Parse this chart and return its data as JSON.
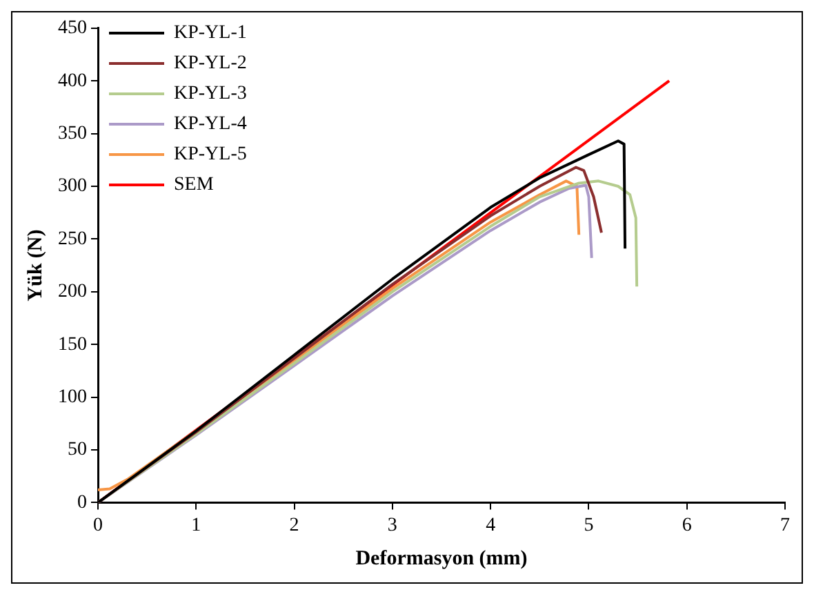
{
  "chart_data": {
    "type": "line",
    "xlabel": "Deformasyon (mm)",
    "ylabel": "Yük (N)",
    "xlim": [
      0,
      7
    ],
    "xticks": [
      0,
      1,
      2,
      3,
      4,
      5,
      6,
      7
    ],
    "ylim": [
      0,
      450
    ],
    "yticks": [
      0,
      50,
      100,
      150,
      200,
      250,
      300,
      350,
      400,
      450
    ],
    "grid": false,
    "legend": "top left",
    "marker": "none",
    "line_style": "solid",
    "series": [
      {
        "name": "KP-YL-1",
        "color": "#000000",
        "x": [
          0,
          1,
          2,
          3,
          4,
          4.5,
          5,
          5.3,
          5.36,
          5.37
        ],
        "values": [
          0,
          68,
          140,
          212,
          280,
          308,
          330,
          343,
          340,
          241
        ]
      },
      {
        "name": "KP-YL-2",
        "color": "#8b2e2e",
        "x": [
          0,
          1,
          2,
          3,
          4,
          4.5,
          4.87,
          4.95,
          5.05,
          5.13
        ],
        "values": [
          0,
          67,
          137,
          207,
          272,
          300,
          318,
          315,
          290,
          256
        ]
      },
      {
        "name": "KP-YL-3",
        "color": "#b5cc8e",
        "x": [
          0,
          1,
          2,
          3,
          4,
          4.5,
          4.9,
          5.1,
          5.3,
          5.42,
          5.48,
          5.49
        ],
        "values": [
          0,
          65,
          132,
          200,
          262,
          290,
          303,
          305,
          300,
          292,
          270,
          205
        ]
      },
      {
        "name": "KP-YL-4",
        "color": "#ab9ac8",
        "x": [
          0,
          1,
          2,
          3,
          4,
          4.5,
          4.8,
          4.97,
          5,
          5.03
        ],
        "values": [
          0,
          64,
          130,
          196,
          258,
          285,
          298,
          301,
          290,
          232
        ]
      },
      {
        "name": "KP-YL-5",
        "color": "#f79646",
        "x": [
          0,
          0.12,
          0.3,
          1,
          2,
          3,
          4,
          4.5,
          4.77,
          4.88,
          4.9
        ],
        "values": [
          12,
          13,
          22,
          68,
          135,
          203,
          266,
          292,
          305,
          300,
          254
        ]
      },
      {
        "name": "SEM",
        "color": "#ff0000",
        "x": [
          0,
          5.82
        ],
        "values": [
          0,
          400
        ]
      }
    ]
  }
}
